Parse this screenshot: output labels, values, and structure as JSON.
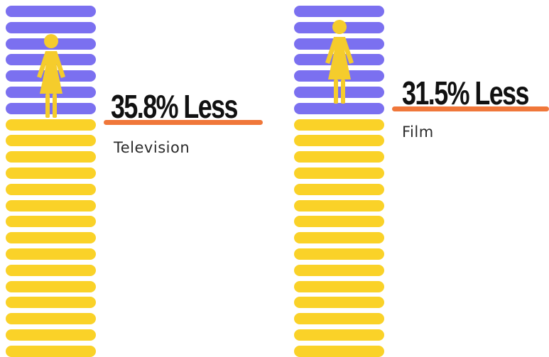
{
  "colors": {
    "women": "#7B70F0",
    "men": "#FAD228",
    "figure": "#F5CC2C",
    "underline": "#F0773A",
    "headline": "#111111"
  },
  "icon": "woman-icon",
  "chart_data": [
    {
      "type": "bar",
      "category": "Television",
      "headline": "35.8% Less",
      "value_percent_less": 35.8,
      "women_fill_fraction": 0.34,
      "stripe_count": 22
    },
    {
      "type": "bar",
      "category": "Film",
      "headline": "31.5% Less",
      "value_percent_less": 31.5,
      "women_fill_fraction": 0.32,
      "stripe_count": 22
    }
  ]
}
